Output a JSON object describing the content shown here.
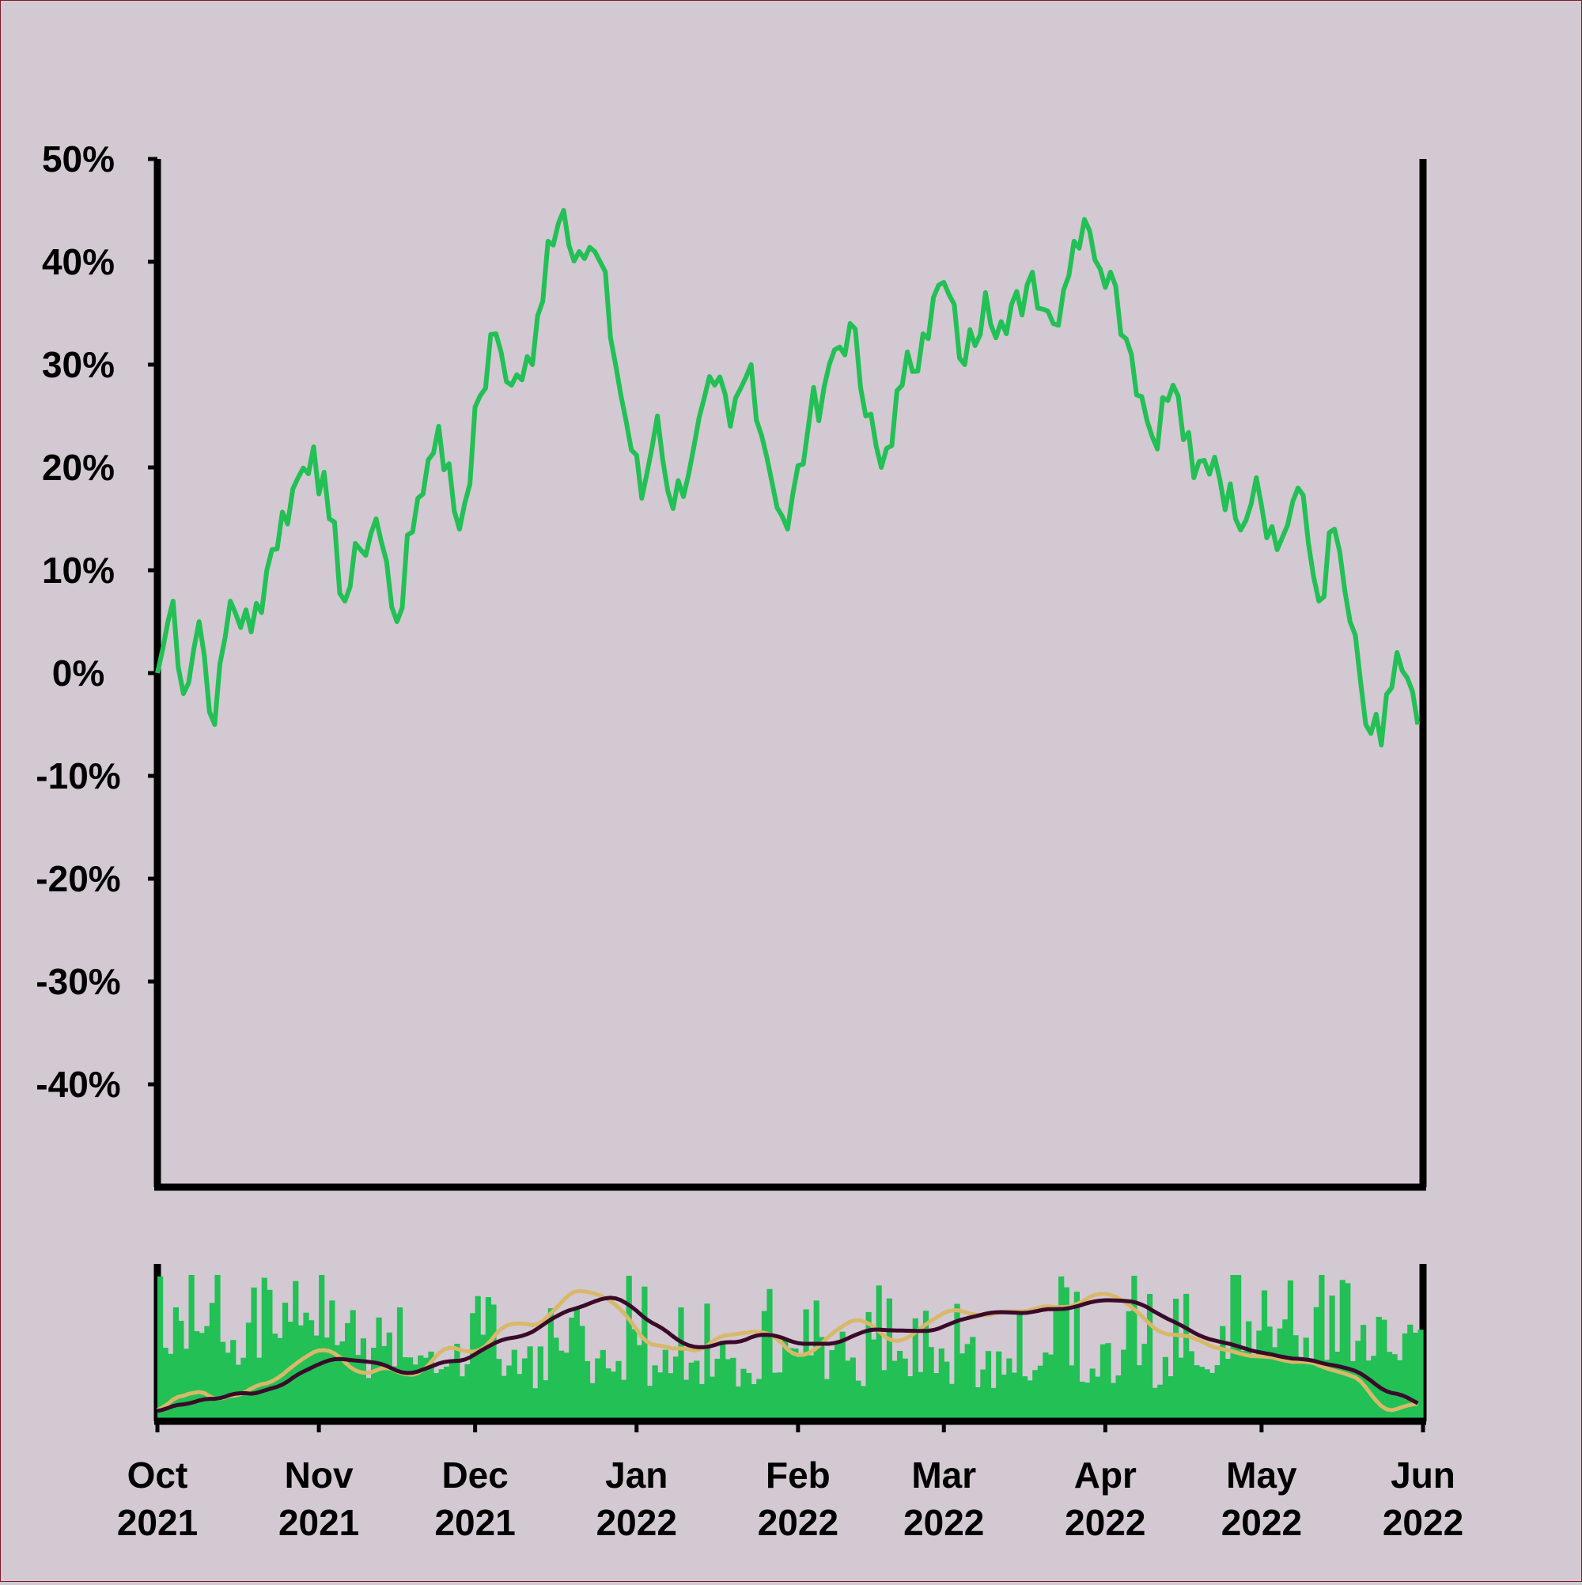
{
  "colors": {
    "background": "#d3c9d2",
    "price_line": "#22c055",
    "volume_bars": "#22c055",
    "fast_ma": "#d8b86a",
    "slow_ma": "#3a0a2a",
    "axis": "#000000",
    "border": "#7a1c2c"
  },
  "chart_data": {
    "type": "line",
    "date_range": [
      "2021-10-01",
      "2022-05-31"
    ],
    "ylim": [
      -50,
      50
    ],
    "ytick_values": [
      50,
      40,
      30,
      20,
      10,
      0,
      -10,
      -20,
      -30,
      -40
    ],
    "ytick_labels": [
      "50%",
      "40%",
      "30%",
      "20%",
      "10%",
      "0%",
      "-10%",
      "-20%",
      "-30%",
      "-40%"
    ],
    "xticks": [
      {
        "date": "2021-10-01",
        "month": "Oct",
        "year": "2021"
      },
      {
        "date": "2021-11-01",
        "month": "Nov",
        "year": "2021"
      },
      {
        "date": "2021-12-01",
        "month": "Dec",
        "year": "2021"
      },
      {
        "date": "2022-01-01",
        "month": "Jan",
        "year": "2022"
      },
      {
        "date": "2022-02-01",
        "month": "Feb",
        "year": "2022"
      },
      {
        "date": "2022-03-01",
        "month": "Mar",
        "year": "2022"
      },
      {
        "date": "2022-04-01",
        "month": "Apr",
        "year": "2022"
      },
      {
        "date": "2022-05-01",
        "month": "May",
        "year": "2022"
      },
      {
        "date": "2022-06-01",
        "month": "Jun",
        "year": "2022"
      }
    ],
    "grid": false,
    "series": [
      {
        "role": "cumulative-return",
        "panel": "main",
        "points": [
          [
            "2021-10-01",
            0
          ],
          [
            "2021-10-04",
            7
          ],
          [
            "2021-10-06",
            -2
          ],
          [
            "2021-10-09",
            5
          ],
          [
            "2021-10-12",
            -5
          ],
          [
            "2021-10-15",
            7
          ],
          [
            "2021-10-19",
            4
          ],
          [
            "2021-10-23",
            12
          ],
          [
            "2021-10-28",
            19
          ],
          [
            "2021-10-31",
            22
          ],
          [
            "2021-11-03",
            15
          ],
          [
            "2021-11-06",
            7
          ],
          [
            "2021-11-09",
            12
          ],
          [
            "2021-11-12",
            15
          ],
          [
            "2021-11-16",
            5
          ],
          [
            "2021-11-20",
            17
          ],
          [
            "2021-11-24",
            24
          ],
          [
            "2021-11-28",
            14
          ],
          [
            "2021-12-02",
            27
          ],
          [
            "2021-12-05",
            33
          ],
          [
            "2021-12-08",
            28
          ],
          [
            "2021-12-12",
            30
          ],
          [
            "2021-12-15",
            42
          ],
          [
            "2021-12-18",
            45
          ],
          [
            "2021-12-21",
            41
          ],
          [
            "2021-12-25",
            40
          ],
          [
            "2021-12-29",
            27
          ],
          [
            "2022-01-02",
            17
          ],
          [
            "2022-01-05",
            25
          ],
          [
            "2022-01-08",
            16
          ],
          [
            "2022-01-12",
            22
          ],
          [
            "2022-01-16",
            28
          ],
          [
            "2022-01-19",
            24
          ],
          [
            "2022-01-23",
            30
          ],
          [
            "2022-01-26",
            21
          ],
          [
            "2022-01-30",
            14
          ],
          [
            "2022-02-03",
            24
          ],
          [
            "2022-02-07",
            30
          ],
          [
            "2022-02-11",
            34
          ],
          [
            "2022-02-14",
            25
          ],
          [
            "2022-02-17",
            20
          ],
          [
            "2022-02-21",
            28
          ],
          [
            "2022-02-25",
            33
          ],
          [
            "2022-03-01",
            38
          ],
          [
            "2022-03-05",
            30
          ],
          [
            "2022-03-09",
            37
          ],
          [
            "2022-03-13",
            33
          ],
          [
            "2022-03-18",
            39
          ],
          [
            "2022-03-22",
            34
          ],
          [
            "2022-03-26",
            42
          ],
          [
            "2022-03-29",
            43
          ],
          [
            "2022-04-02",
            39
          ],
          [
            "2022-04-06",
            31
          ],
          [
            "2022-04-10",
            23
          ],
          [
            "2022-04-14",
            28
          ],
          [
            "2022-04-18",
            19
          ],
          [
            "2022-04-22",
            21
          ],
          [
            "2022-04-26",
            15
          ],
          [
            "2022-04-30",
            19
          ],
          [
            "2022-05-04",
            12
          ],
          [
            "2022-05-08",
            18
          ],
          [
            "2022-05-12",
            7
          ],
          [
            "2022-05-15",
            14
          ],
          [
            "2022-05-18",
            5
          ],
          [
            "2022-05-21",
            -5
          ],
          [
            "2022-05-24",
            -7
          ],
          [
            "2022-05-27",
            2
          ],
          [
            "2022-05-31",
            -5
          ]
        ]
      }
    ],
    "volume_panel": {
      "bars_note": "dense daily volume bars",
      "series": [
        {
          "role": "fast-moving-average"
        },
        {
          "role": "slow-moving-average"
        }
      ]
    }
  }
}
